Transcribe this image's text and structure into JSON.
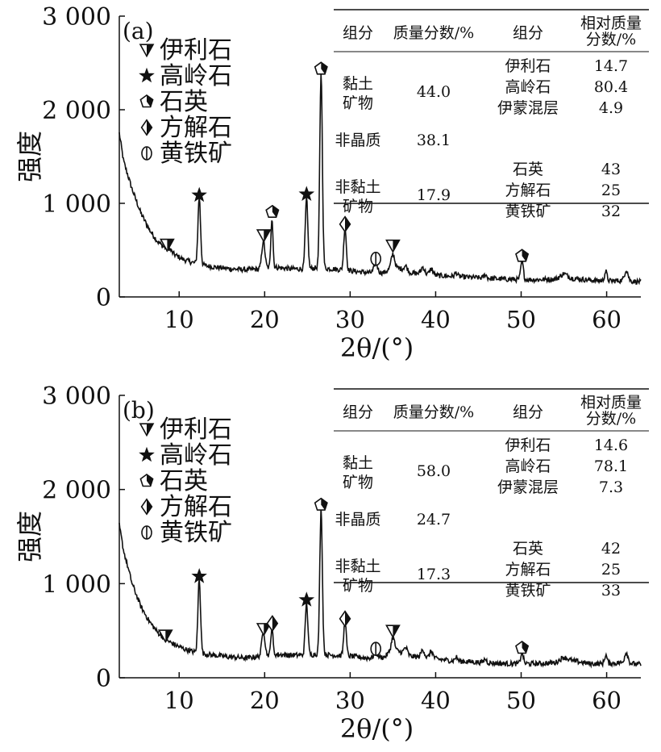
{
  "chart_data": [
    {
      "type": "line",
      "panel_label": "(a)",
      "ylabel": "强度",
      "xlabel": "2θ/(°)",
      "xlim": [
        3,
        64
      ],
      "ylim": [
        0,
        3000
      ],
      "xticks": [
        10,
        20,
        30,
        40,
        50,
        60
      ],
      "ytick_labels": [
        "0",
        "1 000",
        "2 000",
        "3 000"
      ],
      "ytick_values": [
        0,
        1000,
        2000,
        3000
      ],
      "legend_placement": "top-left",
      "legend": [
        {
          "marker": "triangle-down",
          "label": "伊利石"
        },
        {
          "marker": "star",
          "label": "高岭石"
        },
        {
          "marker": "pentagon",
          "label": "石英"
        },
        {
          "marker": "diamond",
          "label": "方解石"
        },
        {
          "marker": "circle",
          "label": "黄铁矿"
        }
      ],
      "table": {
        "headers": [
          "组分",
          "质量分数/%",
          "组分",
          "相对质量\n分数/%"
        ],
        "groups": [
          {
            "name": "黏土\n矿物",
            "fraction": "44.0",
            "items": [
              [
                "伊利石",
                "14.7"
              ],
              [
                "高岭石",
                "80.4"
              ],
              [
                "伊蒙混层",
                "4.9"
              ]
            ]
          },
          {
            "name": "非晶质",
            "fraction": "38.1",
            "items": []
          },
          {
            "name": "非黏土\n矿物",
            "fraction": "17.9",
            "items": [
              [
                "石英",
                "43"
              ],
              [
                "方解石",
                "25"
              ],
              [
                "黄铁矿",
                "32"
              ]
            ]
          }
        ]
      },
      "baseline": [
        [
          3,
          1750
        ],
        [
          3.5,
          1450
        ],
        [
          4.5,
          1150
        ],
        [
          5.5,
          900
        ],
        [
          6.5,
          720
        ],
        [
          7.5,
          590
        ],
        [
          8.5,
          510
        ],
        [
          9.5,
          450
        ],
        [
          10.5,
          400
        ],
        [
          11.5,
          370
        ],
        [
          12.5,
          345
        ],
        [
          14,
          320
        ],
        [
          16,
          300
        ],
        [
          18,
          290
        ],
        [
          19.5,
          300
        ],
        [
          21,
          320
        ],
        [
          23,
          300
        ],
        [
          25,
          300
        ],
        [
          26,
          310
        ],
        [
          28,
          300
        ],
        [
          30,
          280
        ],
        [
          32,
          260
        ],
        [
          34,
          260
        ],
        [
          35,
          320
        ],
        [
          36,
          300
        ],
        [
          37,
          260
        ],
        [
          38,
          250
        ],
        [
          40,
          230
        ],
        [
          42,
          220
        ],
        [
          44,
          210
        ],
        [
          46,
          200
        ],
        [
          48,
          190
        ],
        [
          50,
          185
        ],
        [
          52,
          185
        ],
        [
          54,
          190
        ],
        [
          55,
          230
        ],
        [
          56,
          200
        ],
        [
          58,
          180
        ],
        [
          60,
          170
        ],
        [
          62,
          175
        ],
        [
          64,
          160
        ]
      ],
      "peaks": [
        [
          8.8,
          520,
          0.25
        ],
        [
          12.35,
          1070,
          0.15
        ],
        [
          19.85,
          600,
          0.18
        ],
        [
          20.85,
          850,
          0.12
        ],
        [
          24.9,
          1050,
          0.15
        ],
        [
          26.6,
          2400,
          0.15
        ],
        [
          29.4,
          740,
          0.15
        ],
        [
          33.0,
          360,
          0.2
        ],
        [
          35.0,
          460,
          0.2
        ],
        [
          36.5,
          330,
          0.2
        ],
        [
          38.5,
          320,
          0.2
        ],
        [
          39.5,
          300,
          0.2
        ],
        [
          42.4,
          260,
          0.15
        ],
        [
          45.8,
          240,
          0.15
        ],
        [
          50.1,
          380,
          0.15
        ],
        [
          55.0,
          250,
          0.3
        ],
        [
          59.9,
          270,
          0.15
        ],
        [
          62.3,
          290,
          0.2
        ]
      ],
      "markers": [
        {
          "type": "triangle-down",
          "x": 8.6,
          "y": 540
        },
        {
          "type": "star",
          "x": 12.35,
          "y": 1070
        },
        {
          "type": "triangle-down",
          "x": 19.9,
          "y": 640
        },
        {
          "type": "pentagon",
          "x": 20.9,
          "y": 890
        },
        {
          "type": "star",
          "x": 24.9,
          "y": 1080
        },
        {
          "type": "pentagon",
          "x": 26.6,
          "y": 2420
        },
        {
          "type": "diamond",
          "x": 29.4,
          "y": 760
        },
        {
          "type": "circle",
          "x": 33.0,
          "y": 390
        },
        {
          "type": "triangle-down",
          "x": 35.0,
          "y": 530
        },
        {
          "type": "pentagon",
          "x": 50.1,
          "y": 420
        }
      ]
    },
    {
      "type": "line",
      "panel_label": "(b)",
      "ylabel": "强度",
      "xlabel": "2θ/(°)",
      "xlim": [
        3,
        64
      ],
      "ylim": [
        0,
        3000
      ],
      "xticks": [
        10,
        20,
        30,
        40,
        50,
        60
      ],
      "ytick_labels": [
        "0",
        "1 000",
        "2 000",
        "3 000"
      ],
      "ytick_values": [
        0,
        1000,
        2000,
        3000
      ],
      "legend_placement": "top-left",
      "legend": [
        {
          "marker": "triangle-down",
          "label": "伊利石"
        },
        {
          "marker": "star",
          "label": "高岭石"
        },
        {
          "marker": "pentagon",
          "label": "石英"
        },
        {
          "marker": "diamond",
          "label": "方解石"
        },
        {
          "marker": "circle",
          "label": "黄铁矿"
        }
      ],
      "table": {
        "headers": [
          "组分",
          "质量分数/%",
          "组分",
          "相对质量\n分数/%"
        ],
        "groups": [
          {
            "name": "黏土\n矿物",
            "fraction": "58.0",
            "items": [
              [
                "伊利石",
                "14.6"
              ],
              [
                "高岭石",
                "78.1"
              ],
              [
                "伊蒙混层",
                "7.3"
              ]
            ]
          },
          {
            "name": "非晶质",
            "fraction": "24.7",
            "items": []
          },
          {
            "name": "非黏土\n矿物",
            "fraction": "17.3",
            "items": [
              [
                "石英",
                "42"
              ],
              [
                "方解石",
                "25"
              ],
              [
                "黄铁矿",
                "33"
              ]
            ]
          }
        ]
      },
      "baseline": [
        [
          3,
          1620
        ],
        [
          3.5,
          1350
        ],
        [
          4.5,
          1000
        ],
        [
          5.5,
          760
        ],
        [
          6.5,
          600
        ],
        [
          7.5,
          480
        ],
        [
          8.5,
          400
        ],
        [
          9.5,
          350
        ],
        [
          10.5,
          310
        ],
        [
          11.5,
          280
        ],
        [
          12.5,
          260
        ],
        [
          14,
          240
        ],
        [
          16,
          220
        ],
        [
          18,
          210
        ],
        [
          19.5,
          230
        ],
        [
          21,
          250
        ],
        [
          23,
          240
        ],
        [
          25,
          240
        ],
        [
          26,
          250
        ],
        [
          28,
          240
        ],
        [
          30,
          230
        ],
        [
          32,
          210
        ],
        [
          34,
          220
        ],
        [
          35,
          300
        ],
        [
          36,
          270
        ],
        [
          37,
          230
        ],
        [
          38,
          220
        ],
        [
          40,
          200
        ],
        [
          42,
          180
        ],
        [
          44,
          170
        ],
        [
          46,
          160
        ],
        [
          48,
          150
        ],
        [
          50,
          150
        ],
        [
          52,
          150
        ],
        [
          54,
          160
        ],
        [
          55,
          220
        ],
        [
          56,
          180
        ],
        [
          58,
          150
        ],
        [
          60,
          150
        ],
        [
          62,
          160
        ],
        [
          64,
          140
        ]
      ],
      "peaks": [
        [
          8.5,
          400,
          0.25
        ],
        [
          12.35,
          1060,
          0.15
        ],
        [
          19.85,
          500,
          0.18
        ],
        [
          20.85,
          540,
          0.12
        ],
        [
          24.9,
          800,
          0.15
        ],
        [
          26.6,
          1800,
          0.15
        ],
        [
          29.4,
          600,
          0.15
        ],
        [
          33.0,
          270,
          0.2
        ],
        [
          35.0,
          430,
          0.2
        ],
        [
          36.5,
          320,
          0.2
        ],
        [
          38.5,
          300,
          0.2
        ],
        [
          39.5,
          280,
          0.2
        ],
        [
          42.4,
          220,
          0.15
        ],
        [
          45.8,
          200,
          0.15
        ],
        [
          50.1,
          270,
          0.15
        ],
        [
          55.0,
          220,
          0.3
        ],
        [
          59.9,
          240,
          0.15
        ],
        [
          62.3,
          270,
          0.2
        ]
      ],
      "markers": [
        {
          "type": "triangle-down",
          "x": 8.4,
          "y": 430
        },
        {
          "type": "star",
          "x": 12.35,
          "y": 1060
        },
        {
          "type": "triangle-down",
          "x": 19.9,
          "y": 500
        },
        {
          "type": "diamond",
          "x": 20.9,
          "y": 560
        },
        {
          "type": "star",
          "x": 24.9,
          "y": 810
        },
        {
          "type": "pentagon",
          "x": 26.6,
          "y": 1820
        },
        {
          "type": "diamond",
          "x": 29.4,
          "y": 610
        },
        {
          "type": "circle",
          "x": 33.0,
          "y": 290
        },
        {
          "type": "triangle-down",
          "x": 35.0,
          "y": 480
        },
        {
          "type": "pentagon",
          "x": 50.1,
          "y": 300
        }
      ]
    }
  ]
}
